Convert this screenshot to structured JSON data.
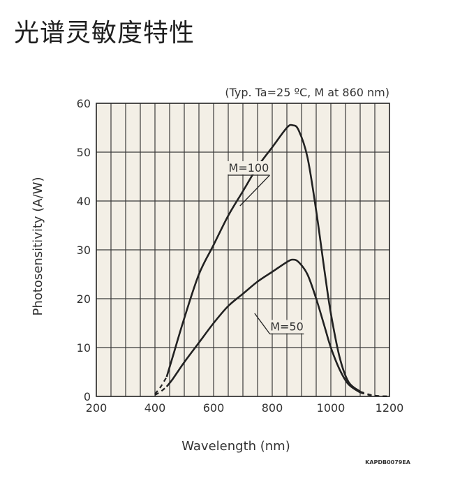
{
  "page": {
    "title": "光谱灵敏度特性"
  },
  "chart_data": {
    "type": "line",
    "title": "",
    "subtitle": "(Typ. Ta=25 ºC, M at 860 nm)",
    "xlabel": "Wavelength (nm)",
    "ylabel": "Photosensitivity (A/W)",
    "xlim": [
      200,
      1200
    ],
    "ylim": [
      0,
      60
    ],
    "x_ticks": [
      200,
      400,
      600,
      800,
      1000,
      1200
    ],
    "y_ticks": [
      0,
      10,
      20,
      30,
      40,
      50,
      60
    ],
    "x_tick_labels": [
      "200",
      "400",
      "600",
      "800",
      "1000",
      "1200"
    ],
    "y_tick_labels": [
      "0",
      "10",
      "20",
      "30",
      "40",
      "50",
      "60"
    ],
    "grid": true,
    "plot_background": "#f3efe6",
    "line_color": "#222222",
    "catalog_code": "KAPDB0079EA",
    "series": [
      {
        "name": "M=100",
        "dashed_start": [
          [
            400,
            0.5
          ],
          [
            420,
            2
          ],
          [
            440,
            4
          ]
        ],
        "points": [
          [
            440,
            4
          ],
          [
            460,
            8
          ],
          [
            500,
            16
          ],
          [
            550,
            25
          ],
          [
            600,
            31
          ],
          [
            650,
            37
          ],
          [
            700,
            42
          ],
          [
            750,
            47
          ],
          [
            800,
            51
          ],
          [
            850,
            55
          ],
          [
            870,
            55.5
          ],
          [
            890,
            54.5
          ],
          [
            920,
            49
          ],
          [
            950,
            38
          ],
          [
            980,
            25
          ],
          [
            1000,
            17
          ],
          [
            1030,
            8
          ],
          [
            1060,
            3
          ],
          [
            1100,
            1
          ]
        ],
        "dashed_end": [
          [
            1100,
            1
          ],
          [
            1130,
            0.4
          ],
          [
            1160,
            0.1
          ],
          [
            1200,
            0
          ]
        ]
      },
      {
        "name": "M=50",
        "dashed_start": [
          [
            400,
            0.3
          ],
          [
            420,
            1
          ],
          [
            440,
            2
          ]
        ],
        "points": [
          [
            440,
            2
          ],
          [
            460,
            3.5
          ],
          [
            500,
            7
          ],
          [
            550,
            11
          ],
          [
            600,
            15
          ],
          [
            650,
            18.5
          ],
          [
            700,
            21
          ],
          [
            750,
            23.5
          ],
          [
            800,
            25.5
          ],
          [
            850,
            27.5
          ],
          [
            870,
            28
          ],
          [
            890,
            27.5
          ],
          [
            920,
            25
          ],
          [
            950,
            20
          ],
          [
            980,
            14
          ],
          [
            1000,
            10
          ],
          [
            1030,
            5.5
          ],
          [
            1060,
            2.5
          ],
          [
            1100,
            0.8
          ]
        ],
        "dashed_end": [
          [
            1100,
            0.8
          ],
          [
            1130,
            0.3
          ],
          [
            1160,
            0.1
          ],
          [
            1200,
            0
          ]
        ]
      }
    ],
    "annotations": [
      {
        "text": "M=100",
        "series": "M=100",
        "label_at": [
          720,
          46
        ],
        "pointer_to": [
          690,
          39
        ]
      },
      {
        "text": "M=50",
        "series": "M=50",
        "label_at": [
          850,
          13.5
        ],
        "pointer_to": [
          740,
          17
        ]
      }
    ]
  }
}
